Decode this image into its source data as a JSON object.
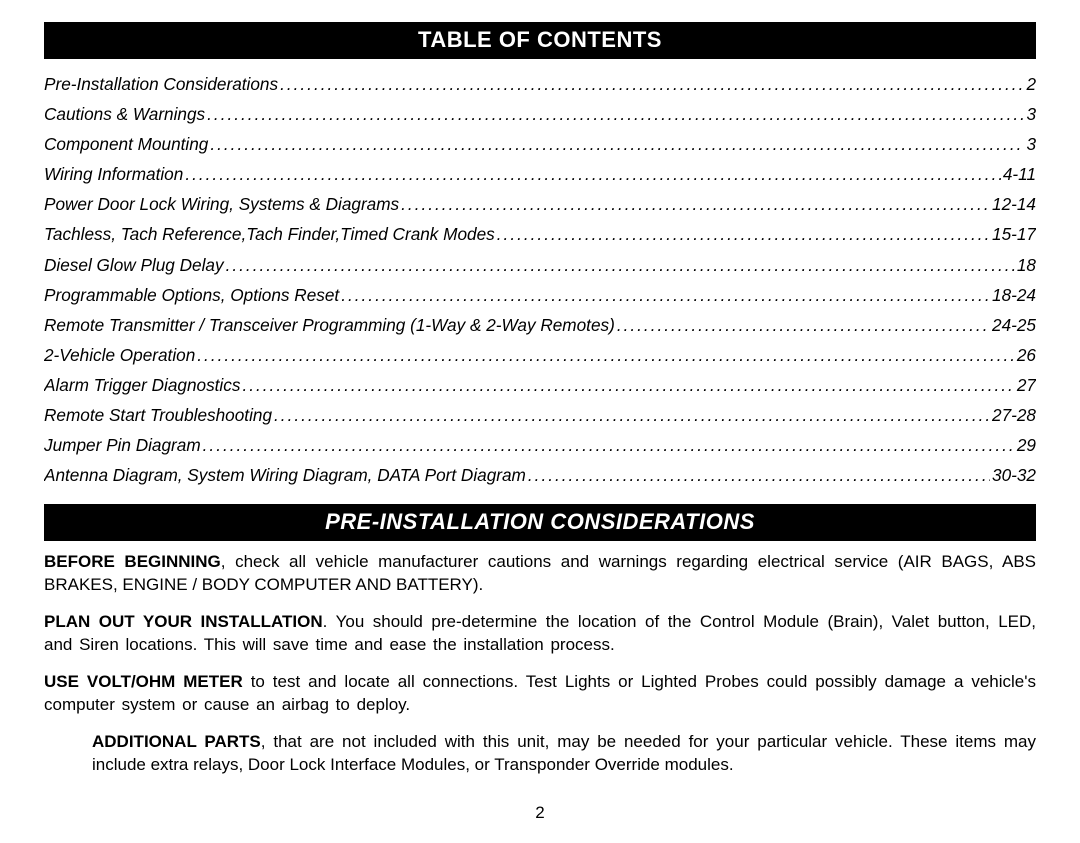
{
  "toc_header": "TABLE OF CONTENTS",
  "toc": [
    {
      "title": "Pre-Installation Considerations",
      "page": "2"
    },
    {
      "title": "Cautions & Warnings",
      "page": "3"
    },
    {
      "title": "Component Mounting",
      "page": "3"
    },
    {
      "title": "Wiring Information ",
      "page": "4-11"
    },
    {
      "title": "Power Door Lock Wiring, Systems & Diagrams",
      "page": "12-14"
    },
    {
      "title": "Tachless, Tach Reference,Tach Finder,Timed Crank Modes",
      "page": "15-17"
    },
    {
      "title": "Diesel Glow Plug Delay",
      "page": "18"
    },
    {
      "title": "Programmable Options, Options Reset",
      "page": "18-24"
    },
    {
      "title": "Remote Transmitter / Transceiver Programming (1-Way & 2-Way Remotes)",
      "page": "24-25"
    },
    {
      "title": "2-Vehicle Operation",
      "page": "26"
    },
    {
      "title": "Alarm Trigger Diagnostics",
      "page": "27"
    },
    {
      "title": "Remote Start Troubleshooting",
      "page": "27-28"
    },
    {
      "title": "Jumper Pin Diagram",
      "page": "29"
    },
    {
      "title": "Antenna Diagram, System Wiring Diagram, DATA Port Diagram",
      "page": "30-32"
    }
  ],
  "section_header": "PRE-INSTALLATION CONSIDERATIONS",
  "paragraphs": {
    "p1_lead": "BEFORE BEGINNING",
    "p1_rest": ", check all vehicle manufacturer cautions and warnings regarding electrical service (AIR BAGS, ABS BRAKES, ENGINE / BODY COMPUTER AND BATTERY).",
    "p2_lead": "PLAN OUT YOUR INSTALLATION",
    "p2_rest": ".  You should pre-determine the location of the Control Module (Brain), Valet button, LED, and Siren locations.  This will save time and ease the installation process.",
    "p3_lead": "USE VOLT/OHM METER",
    "p3_rest": " to test and locate all connections.  Test Lights or Lighted Probes could possibly damage a vehicle's computer system or cause an airbag to deploy.",
    "p4_lead": "ADDITIONAL PARTS",
    "p4_rest": ", that are not included with this unit, may be needed for your particular vehicle.  These items may include extra relays, Door Lock Interface Modules, or Transponder Override modules."
  },
  "page_number": "2"
}
